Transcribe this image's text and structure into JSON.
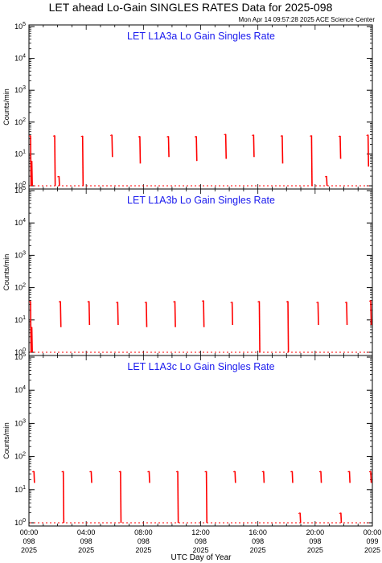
{
  "title": "LET ahead Lo-Gain SINGLES RATES Data for 2025-098",
  "timestamp": "Mon Apr 14 09:57:28 2025 ACE Science Center",
  "xlabel": "UTC Day of Year",
  "colors": {
    "data": "#ff0000",
    "panel_title": "#1a1aee",
    "axis": "#000000"
  },
  "x_ticks": [
    {
      "time": "00:00",
      "doy": "098",
      "year": "2025"
    },
    {
      "time": "04:00",
      "doy": "098",
      "year": "2025"
    },
    {
      "time": "08:00",
      "doy": "098",
      "year": "2025"
    },
    {
      "time": "12:00",
      "doy": "098",
      "year": "2025"
    },
    {
      "time": "16:00",
      "doy": "098",
      "year": "2025"
    },
    {
      "time": "20:00",
      "doy": "098",
      "year": "2025"
    },
    {
      "time": "00:00",
      "doy": "099",
      "year": "2025"
    }
  ],
  "chart_data": [
    {
      "type": "line",
      "title": "LET L1A3a Lo Gain Singles Rate",
      "ylabel": "Counts/min",
      "yscale": "log",
      "ylim": [
        1,
        100000
      ],
      "y_tick_labels": [
        "10^0",
        "10^1",
        "10^2",
        "10^3",
        "10^4",
        "10^5"
      ],
      "xlim_hours": [
        0,
        24
      ],
      "x_tick_hours": [
        0,
        4,
        8,
        12,
        16,
        20,
        24
      ],
      "baseline": 1,
      "bursts": [
        {
          "hour": 0.1,
          "peak": 38,
          "min": 1
        },
        {
          "hour": 0.2,
          "peak": 6,
          "min": 1
        },
        {
          "hour": 1.8,
          "peak": 38,
          "min": 1
        },
        {
          "hour": 2.1,
          "peak": 2,
          "min": 1
        },
        {
          "hour": 3.75,
          "peak": 37,
          "min": 1
        },
        {
          "hour": 5.8,
          "peak": 40,
          "min": 8
        },
        {
          "hour": 7.75,
          "peak": 36,
          "min": 5
        },
        {
          "hour": 9.75,
          "peak": 36,
          "min": 8
        },
        {
          "hour": 11.7,
          "peak": 36,
          "min": 6
        },
        {
          "hour": 13.75,
          "peak": 42,
          "min": 7
        },
        {
          "hour": 15.7,
          "peak": 40,
          "min": 8
        },
        {
          "hour": 17.7,
          "peak": 38,
          "min": 5
        },
        {
          "hour": 19.75,
          "peak": 38,
          "min": 1
        },
        {
          "hour": 20.8,
          "peak": 2,
          "min": 1
        },
        {
          "hour": 21.75,
          "peak": 37,
          "min": 7
        },
        {
          "hour": 23.7,
          "peak": 40,
          "min": 4
        }
      ]
    },
    {
      "type": "line",
      "title": "LET L1A3b Lo Gain Singles Rate",
      "ylabel": "Counts/min",
      "yscale": "log",
      "ylim": [
        1,
        100000
      ],
      "y_tick_labels": [
        "10^0",
        "10^1",
        "10^2",
        "10^3",
        "10^4",
        "10^5"
      ],
      "xlim_hours": [
        0,
        24
      ],
      "x_tick_hours": [
        0,
        4,
        8,
        12,
        16,
        20,
        24
      ],
      "baseline": 1,
      "bursts": [
        {
          "hour": 0.05,
          "peak": 38,
          "min": 1
        },
        {
          "hour": 0.2,
          "peak": 6,
          "min": 1
        },
        {
          "hour": 2.2,
          "peak": 38,
          "min": 6
        },
        {
          "hour": 4.2,
          "peak": 38,
          "min": 7
        },
        {
          "hour": 6.2,
          "peak": 36,
          "min": 7
        },
        {
          "hour": 8.2,
          "peak": 36,
          "min": 6
        },
        {
          "hour": 10.2,
          "peak": 38,
          "min": 6
        },
        {
          "hour": 12.2,
          "peak": 40,
          "min": 6
        },
        {
          "hour": 14.2,
          "peak": 36,
          "min": 7
        },
        {
          "hour": 16.1,
          "peak": 38,
          "min": 1
        },
        {
          "hour": 18.1,
          "peak": 38,
          "min": 1
        },
        {
          "hour": 20.2,
          "peak": 36,
          "min": 7
        },
        {
          "hour": 22.2,
          "peak": 36,
          "min": 7
        },
        {
          "hour": 24.0,
          "peak": 40,
          "min": 7
        }
      ]
    },
    {
      "type": "line",
      "title": "LET L1A3c Lo Gain Singles Rate",
      "ylabel": "Counts/min",
      "yscale": "log",
      "ylim": [
        1,
        100000
      ],
      "y_tick_labels": [
        "10^0",
        "10^1",
        "10^2",
        "10^3",
        "10^4",
        "10^5"
      ],
      "xlim_hours": [
        0,
        24
      ],
      "x_tick_hours": [
        0,
        4,
        8,
        12,
        16,
        20,
        24
      ],
      "baseline": 1,
      "bursts": [
        {
          "hour": 0.35,
          "peak": 36,
          "min": 16
        },
        {
          "hour": 2.4,
          "peak": 36,
          "min": 1
        },
        {
          "hour": 4.35,
          "peak": 36,
          "min": 16
        },
        {
          "hour": 6.4,
          "peak": 36,
          "min": 1
        },
        {
          "hour": 8.4,
          "peak": 36,
          "min": 16
        },
        {
          "hour": 10.4,
          "peak": 36,
          "min": 1
        },
        {
          "hour": 12.4,
          "peak": 36,
          "min": 1
        },
        {
          "hour": 14.4,
          "peak": 36,
          "min": 16
        },
        {
          "hour": 16.4,
          "peak": 36,
          "min": 16
        },
        {
          "hour": 18.4,
          "peak": 36,
          "min": 16
        },
        {
          "hour": 18.95,
          "peak": 2,
          "min": 1
        },
        {
          "hour": 20.4,
          "peak": 36,
          "min": 16
        },
        {
          "hour": 21.8,
          "peak": 2,
          "min": 1
        },
        {
          "hour": 22.4,
          "peak": 36,
          "min": 16
        },
        {
          "hour": 24.4,
          "peak": 36,
          "min": 16
        }
      ]
    }
  ]
}
